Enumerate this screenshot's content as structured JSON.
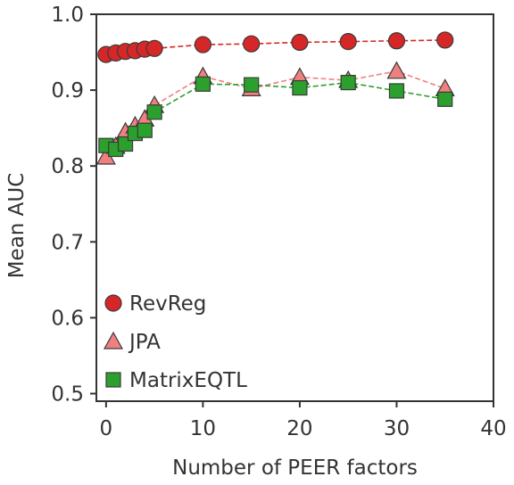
{
  "chart_data": {
    "type": "line",
    "title": "",
    "xlabel": "Number of PEER factors",
    "ylabel": "Mean AUC",
    "xlim": [
      -1,
      40
    ],
    "ylim": [
      0.49,
      1.0
    ],
    "xticks": [
      0,
      10,
      20,
      30,
      40
    ],
    "yticks": [
      0.5,
      0.6,
      0.7,
      0.8,
      0.9,
      1.0
    ],
    "xtick_labels": [
      "0",
      "10",
      "20",
      "30",
      "40"
    ],
    "ytick_labels": [
      "0.5",
      "0.6",
      "0.7",
      "0.8",
      "0.9",
      "1.0"
    ],
    "grid": false,
    "legend_position": "lower-left",
    "series": [
      {
        "name": "RevReg",
        "marker": "circle",
        "color": "#d62728",
        "line_color": "#d62728",
        "x": [
          0,
          1,
          2,
          3,
          4,
          5,
          10,
          15,
          20,
          25,
          30,
          35
        ],
        "y": [
          0.947,
          0.949,
          0.951,
          0.952,
          0.954,
          0.955,
          0.96,
          0.961,
          0.963,
          0.964,
          0.965,
          0.966
        ]
      },
      {
        "name": "JPA",
        "marker": "triangle",
        "color": "#f08080",
        "line_color": "#f08080",
        "x": [
          0,
          1,
          2,
          3,
          4,
          5,
          10,
          15,
          20,
          25,
          30,
          35
        ],
        "y": [
          0.812,
          0.826,
          0.845,
          0.853,
          0.862,
          0.88,
          0.918,
          0.902,
          0.917,
          0.913,
          0.925,
          0.902
        ]
      },
      {
        "name": "MatrixEQTL",
        "marker": "square",
        "color": "#2ca02c",
        "line_color": "#2ca02c",
        "x": [
          0,
          1,
          2,
          3,
          4,
          5,
          10,
          15,
          20,
          25,
          30,
          35
        ],
        "y": [
          0.827,
          0.822,
          0.829,
          0.843,
          0.847,
          0.871,
          0.908,
          0.907,
          0.903,
          0.91,
          0.899,
          0.888
        ]
      }
    ]
  }
}
